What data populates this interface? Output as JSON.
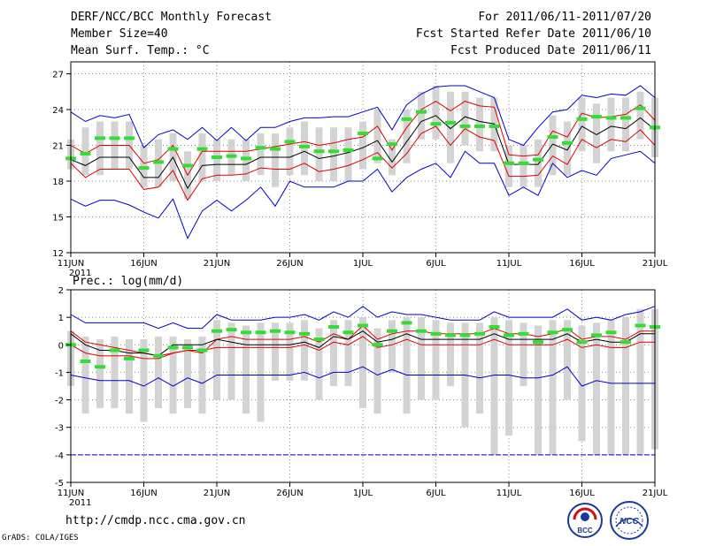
{
  "header": {
    "title": "DERF/NCC/BCC Monthly Forecast",
    "member_size": "Member Size=40",
    "variable": "Mean Surf. Temp.: °C",
    "period": "For 2011/06/11-2011/07/20",
    "started": "Fcst Started Refer Date 2011/06/10",
    "produced": "Fcst Produced Date 2011/06/11"
  },
  "footer": {
    "url": "http://cmdp.ncc.cma.gov.cn",
    "grads": "GrADS: COLA/IGES",
    "logo1_text": "BCC",
    "logo2_text": "NCC"
  },
  "colors": {
    "box": "#d3d3d3",
    "mean": "#000000",
    "spread": "#e00000",
    "extreme": "#0000cc",
    "obs": "#33dd33"
  },
  "chart_data": [
    {
      "type": "line",
      "name": "temperature",
      "title": "",
      "ylabel": "Mean Surf. Temp.: °C",
      "ylim": [
        12,
        28
      ],
      "yticks": [
        12,
        15,
        18,
        21,
        24,
        27
      ],
      "xlim": [
        1,
        41
      ],
      "xticks": [
        1,
        6,
        11,
        16,
        21,
        26,
        31,
        36,
        41
      ],
      "xtick_labels": [
        "11JUN",
        "16JUN",
        "21JUN",
        "26JUN",
        "1JUL",
        "6JUL",
        "11JUL",
        "16JUL",
        "21JUL"
      ],
      "x_year_label": "2011",
      "series": [
        {
          "name": "ensemble max",
          "color": "extreme",
          "values": [
            23.8,
            23.0,
            23.5,
            23.3,
            23.6,
            20.8,
            21.9,
            22.3,
            21.5,
            22.5,
            21.4,
            22.5,
            21.4,
            22.5,
            22.5,
            23.0,
            23.3,
            23.3,
            23.4,
            23.4,
            23.8,
            24.2,
            22.3,
            24.4,
            25.3,
            25.9,
            26.0,
            26.0,
            25.5,
            25.0,
            21.5,
            21.0,
            22.5,
            23.8,
            24.0,
            25.2,
            25.0,
            25.3,
            25.2,
            26.0,
            25.0
          ]
        },
        {
          "name": "mean + spread",
          "color": "spread",
          "values": [
            21.0,
            20.3,
            21.0,
            21.0,
            21.0,
            19.5,
            19.8,
            21.0,
            18.5,
            20.5,
            20.5,
            20.5,
            20.5,
            20.7,
            20.9,
            21.1,
            21.3,
            21.0,
            21.2,
            21.5,
            21.7,
            22.6,
            20.6,
            22.5,
            24.0,
            24.7,
            23.9,
            24.7,
            24.3,
            24.2,
            20.2,
            20.1,
            20.2,
            22.2,
            21.7,
            23.7,
            23.3,
            23.4,
            23.6,
            24.4,
            23.1
          ]
        },
        {
          "name": "ensemble mean",
          "color": "mean",
          "values": [
            19.8,
            19.3,
            20.0,
            20.0,
            20.0,
            18.3,
            18.3,
            20.0,
            17.4,
            19.3,
            19.4,
            19.4,
            19.4,
            20.0,
            20.0,
            20.0,
            20.5,
            19.9,
            20.1,
            20.4,
            20.8,
            21.4,
            19.6,
            21.3,
            23.0,
            23.5,
            22.4,
            23.4,
            23.0,
            22.8,
            19.4,
            19.4,
            19.4,
            21.1,
            20.6,
            22.6,
            21.9,
            22.6,
            22.4,
            23.3,
            22.3
          ]
        },
        {
          "name": "mean - spread",
          "color": "spread",
          "values": [
            19.5,
            18.3,
            19.0,
            19.0,
            19.0,
            17.3,
            17.5,
            18.9,
            16.4,
            18.2,
            18.5,
            18.5,
            18.6,
            19.1,
            19.0,
            19.0,
            19.5,
            18.8,
            19.0,
            19.3,
            19.8,
            20.4,
            19.1,
            20.3,
            22.0,
            22.6,
            21.0,
            22.4,
            21.7,
            21.4,
            18.4,
            18.4,
            18.5,
            20.1,
            19.4,
            21.5,
            20.8,
            21.5,
            21.3,
            22.3,
            21.0
          ]
        },
        {
          "name": "ensemble min",
          "color": "extreme",
          "values": [
            16.5,
            15.9,
            16.4,
            16.4,
            16.0,
            15.4,
            14.9,
            16.5,
            13.2,
            15.5,
            16.4,
            15.5,
            16.4,
            17.5,
            15.9,
            18.0,
            17.5,
            17.5,
            17.5,
            18.0,
            18.0,
            19.0,
            17.1,
            18.3,
            19.0,
            19.5,
            18.3,
            20.5,
            19.5,
            19.5,
            16.8,
            17.5,
            16.8,
            19.5,
            18.3,
            18.9,
            18.5,
            19.9,
            20.2,
            20.5,
            19.5
          ]
        },
        {
          "name": "observation",
          "color": "obs",
          "values": [
            19.9,
            20.3,
            21.6,
            21.6,
            21.6,
            19.1,
            19.6,
            20.7,
            19.3,
            20.7,
            20.0,
            20.1,
            19.9,
            20.8,
            20.7,
            21.3,
            20.9,
            20.5,
            20.5,
            20.6,
            22.0,
            19.9,
            21.1,
            23.2,
            23.8,
            22.8,
            22.9,
            22.6,
            22.6,
            22.6,
            19.5,
            19.5,
            19.8,
            21.7,
            21.2,
            23.2,
            23.4,
            23.3,
            23.3,
            24.1,
            22.5
          ]
        }
      ],
      "box_low": [
        19.0,
        18.5,
        18.5,
        19.0,
        19.0,
        17.5,
        17.5,
        18.0,
        16.5,
        18.0,
        18.0,
        18.5,
        18.0,
        18.5,
        17.5,
        18.5,
        18.5,
        18.0,
        18.0,
        18.0,
        19.0,
        19.5,
        18.5,
        19.5,
        21.5,
        21.5,
        19.5,
        21.0,
        20.5,
        20.5,
        17.5,
        17.5,
        17.5,
        18.5,
        18.5,
        20.5,
        19.5,
        20.5,
        20.5,
        21.5,
        20.0
      ],
      "box_high": [
        21.5,
        22.5,
        23.0,
        23.0,
        23.0,
        21.0,
        21.5,
        22.0,
        20.5,
        22.0,
        21.5,
        21.5,
        21.5,
        22.0,
        22.0,
        22.5,
        23.0,
        22.5,
        22.5,
        22.5,
        23.0,
        24.0,
        21.5,
        24.0,
        25.5,
        26.0,
        25.5,
        25.5,
        25.0,
        25.0,
        21.0,
        21.0,
        21.5,
        23.5,
        23.0,
        25.0,
        24.5,
        25.0,
        25.0,
        25.5,
        25.0
      ]
    },
    {
      "type": "line",
      "name": "precipitation",
      "title": "",
      "ylabel": "Prec.: log(mm/d)",
      "ylim": [
        -5,
        2
      ],
      "yticks": [
        -5,
        -4,
        -3,
        -2,
        -1,
        0,
        1,
        2
      ],
      "xlim": [
        1,
        41
      ],
      "xticks": [
        1,
        6,
        11,
        16,
        21,
        26,
        31,
        36,
        41
      ],
      "xtick_labels": [
        "11JUN",
        "16JUN",
        "21JUN",
        "26JUN",
        "1JUL",
        "6JUL",
        "11JUL",
        "16JUL",
        "21JUL"
      ],
      "x_year_label": "2011",
      "series": [
        {
          "name": "ensemble max",
          "color": "extreme",
          "values": [
            1.1,
            0.8,
            0.8,
            0.8,
            0.8,
            0.8,
            0.6,
            0.8,
            0.6,
            0.6,
            1.1,
            0.9,
            0.9,
            0.9,
            1.0,
            1.0,
            1.1,
            0.9,
            1.2,
            1.0,
            1.4,
            1.0,
            1.2,
            1.1,
            1.1,
            1.0,
            0.9,
            0.9,
            0.9,
            1.2,
            1.0,
            1.0,
            1.0,
            1.0,
            1.3,
            0.9,
            1.0,
            0.9,
            1.1,
            1.2,
            1.4
          ]
        },
        {
          "name": "mean + spread",
          "color": "spread",
          "values": [
            0.5,
            0.1,
            0.0,
            -0.1,
            -0.2,
            -0.3,
            -0.4,
            -0.3,
            -0.2,
            -0.3,
            0.2,
            0.3,
            0.2,
            0.2,
            0.2,
            0.2,
            0.3,
            0.1,
            0.4,
            0.2,
            0.7,
            0.2,
            0.4,
            0.5,
            0.5,
            0.4,
            0.4,
            0.4,
            0.4,
            0.6,
            0.4,
            0.4,
            0.3,
            0.4,
            0.6,
            0.2,
            0.3,
            0.3,
            0.2,
            0.5,
            0.5
          ]
        },
        {
          "name": "ensemble mean",
          "color": "mean",
          "values": [
            0.4,
            0.0,
            -0.2,
            -0.2,
            -0.3,
            -0.3,
            -0.4,
            0.0,
            0.0,
            0.0,
            0.2,
            0.1,
            0.0,
            0.0,
            0.0,
            0.0,
            0.1,
            -0.1,
            0.3,
            0.2,
            0.5,
            0.1,
            0.2,
            0.4,
            0.2,
            0.2,
            0.2,
            0.2,
            0.2,
            0.4,
            0.2,
            0.2,
            0.2,
            0.2,
            0.4,
            0.1,
            0.2,
            0.1,
            0.1,
            0.4,
            0.4
          ]
        },
        {
          "name": "mean - spread",
          "color": "spread",
          "values": [
            0.0,
            -0.3,
            -0.4,
            -0.4,
            -0.4,
            -0.5,
            -0.5,
            -0.3,
            -0.2,
            -0.2,
            -0.1,
            -0.1,
            -0.1,
            -0.1,
            -0.1,
            -0.1,
            0.0,
            -0.2,
            0.1,
            0.0,
            0.3,
            -0.1,
            0.0,
            0.2,
            0.0,
            0.0,
            0.0,
            0.0,
            0.0,
            0.2,
            0.0,
            0.0,
            0.0,
            0.0,
            0.2,
            -0.1,
            0.0,
            -0.1,
            -0.1,
            0.1,
            0.1
          ]
        },
        {
          "name": "ensemble min",
          "color": "extreme",
          "values": [
            -1.1,
            -1.2,
            -1.3,
            -1.3,
            -1.3,
            -1.5,
            -1.2,
            -1.5,
            -1.2,
            -1.4,
            -1.1,
            -1.1,
            -1.1,
            -1.1,
            -1.1,
            -1.1,
            -1.0,
            -1.2,
            -1.0,
            -1.0,
            -0.8,
            -1.1,
            -0.9,
            -1.1,
            -1.1,
            -1.1,
            -1.1,
            -1.1,
            -1.2,
            -1.1,
            -1.1,
            -1.2,
            -1.2,
            -1.1,
            -0.8,
            -1.5,
            -1.3,
            -1.4,
            -1.4,
            -1.4,
            -1.4
          ]
        },
        {
          "name": "observation",
          "color": "obs",
          "values": [
            0.0,
            -0.6,
            -0.8,
            -0.2,
            -0.5,
            -0.2,
            -0.4,
            -0.1,
            -0.1,
            -0.2,
            0.5,
            0.55,
            0.45,
            0.45,
            0.5,
            0.45,
            0.4,
            0.2,
            0.65,
            0.45,
            0.7,
            0.0,
            0.5,
            0.8,
            0.5,
            0.4,
            0.35,
            0.35,
            0.4,
            0.65,
            0.35,
            0.4,
            0.1,
            0.45,
            0.55,
            0.1,
            0.35,
            0.45,
            0.1,
            0.7,
            0.65
          ]
        },
        {
          "name": "threshold",
          "color": "extreme",
          "values": [
            -4,
            -4,
            -4,
            -4,
            -4,
            -4,
            -4,
            -4,
            -4,
            -4,
            -4,
            -4,
            -4,
            -4,
            -4,
            -4,
            -4,
            -4,
            -4,
            -4,
            -4,
            -4,
            -4,
            -4,
            -4,
            -4,
            -4,
            -4,
            -4,
            -4,
            -4,
            -4,
            -4,
            -4,
            -4,
            -4,
            -4,
            -4,
            -4,
            -4,
            -4
          ]
        }
      ],
      "box_low": [
        -1.5,
        -2.5,
        -2.3,
        -2.3,
        -2.5,
        -2.8,
        -2.3,
        -2.5,
        -2.3,
        -2.5,
        -2.0,
        -2.0,
        -2.5,
        -2.8,
        -1.3,
        -1.3,
        -1.3,
        -2.0,
        -1.5,
        -1.5,
        -2.3,
        -2.5,
        -1.0,
        -2.5,
        -2.0,
        -2.0,
        -1.5,
        -3.0,
        -2.5,
        -4.0,
        -3.3,
        -1.5,
        -4.0,
        -4.0,
        -2.0,
        -3.5,
        -4.0,
        -4.0,
        -4.0,
        -4.0,
        -3.8
      ],
      "box_high": [
        0.5,
        0.3,
        0.2,
        0.3,
        0.2,
        0.2,
        0.3,
        0.3,
        0.2,
        0.3,
        0.9,
        0.8,
        0.7,
        0.8,
        0.8,
        0.8,
        0.9,
        0.6,
        0.9,
        0.9,
        1.0,
        0.6,
        0.9,
        1.0,
        1.0,
        0.9,
        0.8,
        0.8,
        0.8,
        1.0,
        0.9,
        0.8,
        0.7,
        0.9,
        0.9,
        0.7,
        0.8,
        0.9,
        1.0,
        1.3,
        1.3
      ]
    }
  ]
}
